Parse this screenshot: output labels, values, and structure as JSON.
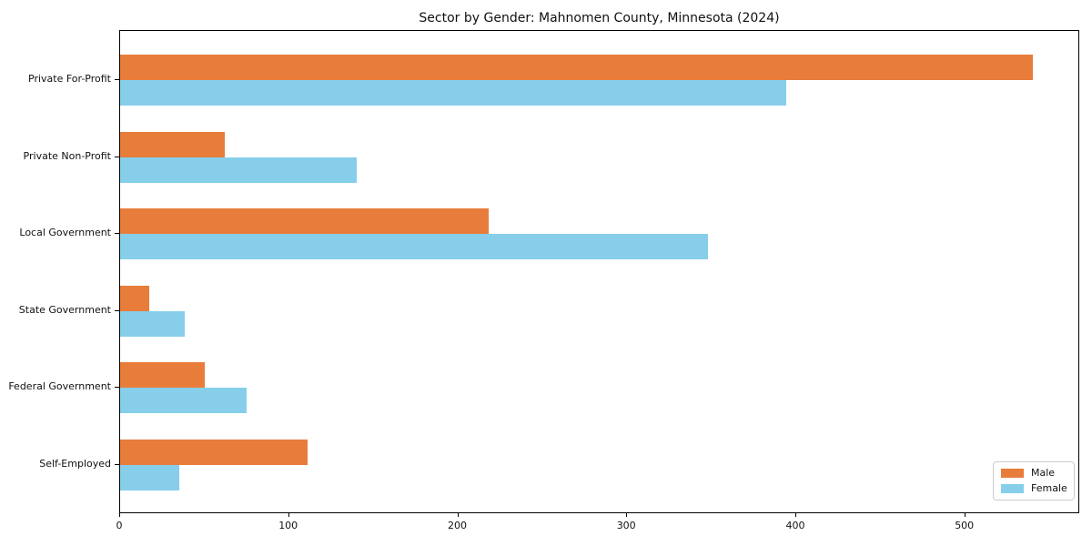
{
  "figure": {
    "background": "#ffffff",
    "text_color": "#111111",
    "spine_color": "#000000"
  },
  "chart_data": {
    "type": "bar",
    "orientation": "horizontal",
    "title": "Sector by Gender: Mahnomen County, Minnesota (2024)",
    "xlabel": "",
    "ylabel": "",
    "categories": [
      "Private For-Profit",
      "Private Non-Profit",
      "Local Government",
      "State Government",
      "Federal Government",
      "Self-Employed"
    ],
    "series": [
      {
        "name": "Male",
        "color": "#e87d3b",
        "values": [
          540,
          62,
          218,
          17,
          50,
          111
        ]
      },
      {
        "name": "Female",
        "color": "#87ceeb",
        "values": [
          394,
          140,
          348,
          38,
          75,
          35
        ]
      }
    ],
    "xlim": [
      0,
      568
    ],
    "x_ticks": [
      "0",
      "100",
      "200",
      "300",
      "400",
      "500"
    ],
    "grid": false,
    "legend_position": "lower right"
  }
}
